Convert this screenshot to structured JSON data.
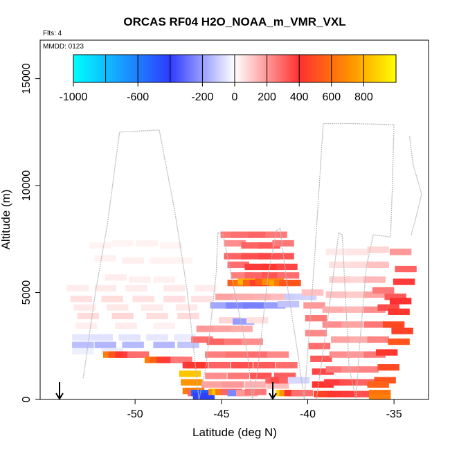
{
  "chart_data": {
    "type": "heatmap",
    "title": "ORCAS RF04 H2O_NOAA_m_VMR_VXL",
    "notes": {
      "flights": "Flts: 4",
      "date": "MMDD: 0123"
    },
    "xlabel": "Latitude (deg N)",
    "ylabel": "Altitude (m)",
    "xlim": [
      -55.5,
      -33
    ],
    "ylim": [
      0,
      16800
    ],
    "x_ticks": [
      -50,
      -45,
      -40,
      -35
    ],
    "y_ticks": [
      0,
      5000,
      10000,
      15000
    ],
    "colorbar": {
      "range": [
        -1000,
        1000
      ],
      "ticks": [
        -1000,
        -600,
        -200,
        0,
        200,
        400,
        600,
        800
      ],
      "colors": {
        "neg_max": "#00ffff",
        "neg_mid": "#2f3bff",
        "zero": "#ffffff",
        "pos_low": "#ff3030",
        "pos_mid": "#ff8c00",
        "pos_max": "#ffff00"
      }
    },
    "flight_track": {
      "color": "#bbbbbb",
      "points": [
        [
          -53,
          1000
        ],
        [
          -52.3,
          5000
        ],
        [
          -51.6,
          8200
        ],
        [
          -50.9,
          12500
        ],
        [
          -48.6,
          12600
        ],
        [
          -47.7,
          8800
        ],
        [
          -47,
          5200
        ],
        [
          -46.6,
          2300
        ],
        [
          -46.3,
          0
        ],
        [
          -45.9,
          1500
        ],
        [
          -45.3,
          5900
        ],
        [
          -45.2,
          7800
        ],
        [
          -44.9,
          7700
        ],
        [
          -44.2,
          4900
        ],
        [
          -43.5,
          2200
        ],
        [
          -43.2,
          0
        ],
        [
          -42.9,
          1400
        ],
        [
          -42.3,
          5800
        ],
        [
          -41.8,
          7900
        ],
        [
          -41.6,
          8000
        ],
        [
          -41.2,
          5400
        ],
        [
          -40.6,
          2300
        ],
        [
          -40.2,
          0
        ],
        [
          -39.6,
          6600
        ],
        [
          -39.1,
          12900
        ],
        [
          -37.5,
          12900
        ],
        [
          -35,
          12850
        ],
        [
          -35.1,
          9800
        ],
        [
          -35.2,
          7600
        ],
        [
          -36.2,
          7700
        ],
        [
          -36.6,
          6200
        ],
        [
          -37,
          2500
        ],
        [
          -37.2,
          0
        ],
        [
          -37.6,
          1500
        ],
        [
          -38,
          7700
        ],
        [
          -38.2,
          7800
        ],
        [
          -38.8,
          4000
        ],
        [
          -39.5,
          0
        ]
      ],
      "branch": [
        [
          -34.1,
          12300
        ],
        [
          -33.9,
          11000
        ],
        [
          -33.4,
          9600
        ],
        [
          -33.7,
          8600
        ],
        [
          -34,
          7700
        ]
      ]
    },
    "series": [
      {
        "name": "",
        "cells": [
          [
            -52.5,
            7200,
            22
          ],
          [
            -51.2,
            7300,
            24
          ],
          [
            -49.8,
            7300,
            26
          ],
          [
            -48.4,
            7200,
            22
          ],
          [
            -52.2,
            6600,
            28
          ],
          [
            -50.6,
            6500,
            30
          ],
          [
            -49,
            6500,
            26
          ],
          [
            -47.8,
            6500,
            24
          ],
          [
            -51.6,
            5700,
            34
          ],
          [
            -50.2,
            5600,
            30
          ],
          [
            -48.8,
            5600,
            28
          ],
          [
            -53.8,
            5200,
            36
          ],
          [
            -52.2,
            5200,
            40
          ],
          [
            -50.4,
            5200,
            36
          ],
          [
            -48.2,
            5200,
            40
          ],
          [
            -46.4,
            5200,
            34
          ],
          [
            -53.6,
            4700,
            60
          ],
          [
            -51.8,
            4700,
            66
          ],
          [
            -50,
            4700,
            58
          ],
          [
            -48.2,
            4700,
            62
          ],
          [
            -46.6,
            4700,
            56
          ],
          [
            -53.4,
            4300,
            40
          ],
          [
            -51.5,
            4300,
            44
          ],
          [
            -49.5,
            4300,
            38
          ],
          [
            -47.5,
            4300,
            42
          ],
          [
            -53.2,
            3900,
            70
          ],
          [
            -51.2,
            3900,
            78
          ],
          [
            -49.2,
            3900,
            64
          ],
          [
            -47.4,
            3900,
            70
          ],
          [
            -53.3,
            3450,
            30
          ],
          [
            -51,
            3450,
            34
          ],
          [
            -48.8,
            3450,
            28
          ],
          [
            -53.5,
            2900,
            -50
          ],
          [
            -52.4,
            2900,
            -60
          ],
          [
            -50.8,
            2900,
            -55
          ],
          [
            -49.2,
            2900,
            -48
          ],
          [
            -47.6,
            2900,
            -40
          ],
          [
            -53.5,
            2550,
            -130
          ],
          [
            -52.2,
            2550,
            -150
          ],
          [
            -50.6,
            2550,
            -140
          ],
          [
            -48.8,
            2550,
            -145
          ],
          [
            -47.4,
            2550,
            -120
          ],
          [
            -53.5,
            2250,
            -30
          ],
          [
            -51.8,
            2250,
            -40
          ],
          [
            -51.7,
            2100,
            650
          ],
          [
            -51.4,
            2100,
            520
          ],
          [
            -51,
            2100,
            420
          ],
          [
            -50.6,
            2100,
            380
          ],
          [
            -50.3,
            2100,
            280
          ],
          [
            -49.3,
            1850,
            650
          ],
          [
            -49,
            1850,
            560
          ],
          [
            -48.6,
            1850,
            450
          ],
          [
            -48.2,
            1850,
            380
          ],
          [
            -47.8,
            1850,
            260
          ],
          [
            -47.3,
            1200,
            850
          ],
          [
            -47.2,
            800,
            720
          ],
          [
            -47.1,
            1600,
            380
          ],
          [
            -46.9,
            1600,
            420
          ],
          [
            -47.1,
            400,
            650
          ],
          [
            -46.8,
            300,
            300
          ],
          [
            -46.6,
            300,
            -500
          ],
          [
            -46.5,
            150,
            -420
          ],
          [
            -46.6,
            2800,
            280
          ],
          [
            -45.7,
            2700,
            300
          ],
          [
            -44.7,
            2700,
            260
          ],
          [
            -43.7,
            2700,
            220
          ],
          [
            -46.3,
            3300,
            200
          ],
          [
            -45.3,
            3300,
            180
          ],
          [
            -44.3,
            3300,
            160
          ],
          [
            -45.8,
            2100,
            250
          ],
          [
            -44.6,
            2100,
            270
          ],
          [
            -43.4,
            2100,
            280
          ],
          [
            -42.2,
            2100,
            230
          ],
          [
            -45.6,
            1600,
            300
          ],
          [
            -44.3,
            1600,
            340
          ],
          [
            -43,
            1600,
            320
          ],
          [
            -41.7,
            1600,
            280
          ],
          [
            -45.8,
            1100,
            220
          ],
          [
            -44.5,
            1100,
            260
          ],
          [
            -43.2,
            1100,
            330
          ],
          [
            -41.8,
            1100,
            310
          ],
          [
            -46,
            700,
            180
          ],
          [
            -44.8,
            700,
            200
          ],
          [
            -43.5,
            700,
            150
          ],
          [
            -42.2,
            650,
            130
          ],
          [
            -45.6,
            350,
            720
          ],
          [
            -45.4,
            350,
            850
          ],
          [
            -45.2,
            350,
            650
          ],
          [
            -44.9,
            350,
            300
          ],
          [
            -44.5,
            300,
            -250
          ],
          [
            -44,
            300,
            200
          ],
          [
            -43.5,
            350,
            260
          ],
          [
            -41.7,
            300,
            880
          ],
          [
            -41.5,
            300,
            720
          ],
          [
            -41.2,
            300,
            420
          ],
          [
            -40.8,
            300,
            280
          ],
          [
            -44.9,
            7700,
            260
          ],
          [
            -44.3,
            7700,
            280
          ],
          [
            -43.3,
            7700,
            300
          ],
          [
            -42.3,
            7700,
            260
          ],
          [
            -44.7,
            7300,
            220
          ],
          [
            -43.7,
            7200,
            300
          ],
          [
            -42.7,
            7200,
            320
          ],
          [
            -41.9,
            7300,
            260
          ],
          [
            -44.7,
            6700,
            300
          ],
          [
            -43.7,
            6700,
            340
          ],
          [
            -42.7,
            6700,
            360
          ],
          [
            -41.9,
            6700,
            330
          ],
          [
            -44.5,
            6300,
            280
          ],
          [
            -43.5,
            6200,
            380
          ],
          [
            -42.5,
            6200,
            420
          ],
          [
            -41.7,
            6200,
            360
          ],
          [
            -44.3,
            5800,
            250
          ],
          [
            -43.5,
            5800,
            300
          ],
          [
            -42.5,
            5800,
            330
          ],
          [
            -41.6,
            5800,
            280
          ],
          [
            -44.5,
            5450,
            550
          ],
          [
            -44.2,
            5450,
            620
          ],
          [
            -43.9,
            5500,
            800
          ],
          [
            -43.6,
            5450,
            580
          ],
          [
            -43.2,
            5450,
            450
          ],
          [
            -42.9,
            5500,
            550
          ],
          [
            -42.5,
            5500,
            700
          ],
          [
            -42.1,
            5450,
            760
          ],
          [
            -41.8,
            5450,
            650
          ],
          [
            -41.5,
            5450,
            520
          ],
          [
            -45.2,
            4800,
            180
          ],
          [
            -44.2,
            4800,
            160
          ],
          [
            -43,
            4800,
            150
          ],
          [
            -42,
            4800,
            130
          ],
          [
            -45.5,
            4400,
            -180
          ],
          [
            -44.6,
            4400,
            -240
          ],
          [
            -43.6,
            4400,
            -260
          ],
          [
            -42.4,
            4400,
            -200
          ],
          [
            -41.6,
            4450,
            -120
          ],
          [
            -45,
            3700,
            80
          ],
          [
            -44.2,
            3650,
            -200
          ],
          [
            -43.4,
            3700,
            60
          ],
          [
            -41.2,
            4800,
            -100
          ],
          [
            -40.6,
            4800,
            -90
          ],
          [
            -40.2,
            5000,
            120
          ],
          [
            -40.1,
            4400,
            200
          ],
          [
            -40,
            3800,
            260
          ],
          [
            -40,
            3100,
            230
          ],
          [
            -39.8,
            2500,
            280
          ],
          [
            -39.7,
            1900,
            320
          ],
          [
            -39.6,
            1300,
            360
          ],
          [
            -39.6,
            700,
            420
          ],
          [
            -39.5,
            250,
            460
          ],
          [
            -38.7,
            250,
            420
          ],
          [
            -37.9,
            250,
            380
          ],
          [
            -37.1,
            250,
            340
          ],
          [
            -38.9,
            800,
            380
          ],
          [
            -38,
            800,
            340
          ],
          [
            -37.1,
            800,
            300
          ],
          [
            -38.8,
            1400,
            260
          ],
          [
            -37.9,
            1400,
            220
          ],
          [
            -37,
            1400,
            240
          ],
          [
            -38.6,
            2100,
            220
          ],
          [
            -37.6,
            2100,
            200
          ],
          [
            -36.6,
            2100,
            260
          ],
          [
            -38.5,
            2800,
            180
          ],
          [
            -37.4,
            2800,
            160
          ],
          [
            -36.4,
            2800,
            240
          ],
          [
            -39,
            3500,
            220
          ],
          [
            -37.9,
            3500,
            180
          ],
          [
            -36.6,
            3500,
            260
          ],
          [
            -39,
            4200,
            160
          ],
          [
            -37.8,
            4200,
            140
          ],
          [
            -36.6,
            4200,
            220
          ],
          [
            -38.8,
            4900,
            120
          ],
          [
            -37.6,
            4900,
            100
          ],
          [
            -36.6,
            4900,
            180
          ],
          [
            -38.6,
            5600,
            90
          ],
          [
            -37.4,
            5600,
            80
          ],
          [
            -36.6,
            5600,
            140
          ],
          [
            -38.6,
            6300,
            60
          ],
          [
            -37.4,
            6300,
            70
          ],
          [
            -36.4,
            6300,
            120
          ],
          [
            -38.8,
            6900,
            40
          ],
          [
            -37.6,
            6900,
            50
          ],
          [
            -36.4,
            7000,
            80
          ],
          [
            -36.1,
            5100,
            260
          ],
          [
            -35.8,
            4300,
            350
          ],
          [
            -35.5,
            3500,
            480
          ],
          [
            -35.2,
            2700,
            520
          ],
          [
            -35.4,
            4800,
            320
          ],
          [
            -35.2,
            4100,
            420
          ],
          [
            -35,
            3200,
            460
          ],
          [
            -35.9,
            2200,
            420
          ],
          [
            -35.8,
            1500,
            480
          ],
          [
            -36,
            900,
            520
          ],
          [
            -36.4,
            700,
            560
          ],
          [
            -36.3,
            300,
            620
          ],
          [
            -36.3,
            100,
            650
          ],
          [
            -35.1,
            6900,
            200
          ],
          [
            -34.8,
            6100,
            300
          ],
          [
            -34.9,
            5500,
            380
          ],
          [
            -35.1,
            4600,
            400
          ],
          [
            -42.3,
            900,
            300
          ],
          [
            -42,
            900,
            350
          ],
          [
            -41.5,
            900,
            300
          ],
          [
            -41,
            900,
            -80
          ]
        ]
      }
    ]
  }
}
